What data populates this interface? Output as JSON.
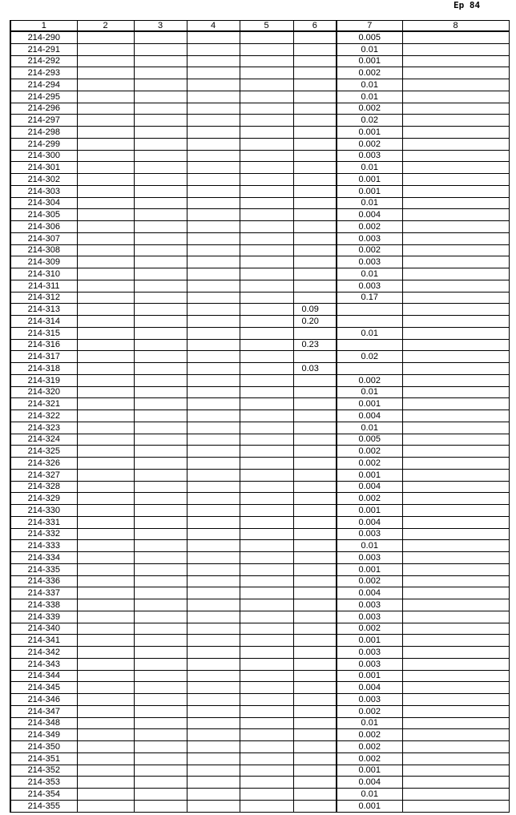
{
  "page_label": "Ep 84",
  "headers": [
    "1",
    "2",
    "3",
    "4",
    "5",
    "6",
    "7",
    "8"
  ],
  "rows": [
    [
      "214-290",
      "",
      "",
      "",
      "",
      "",
      "0.005",
      ""
    ],
    [
      "214-291",
      "",
      "",
      "",
      "",
      "",
      "0.01",
      ""
    ],
    [
      "214-292",
      "",
      "",
      "",
      "",
      "",
      "0.001",
      ""
    ],
    [
      "214-293",
      "",
      "",
      "",
      "",
      "",
      "0.002",
      ""
    ],
    [
      "214-294",
      "",
      "",
      "",
      "",
      "",
      "0.01",
      ""
    ],
    [
      "214-295",
      "",
      "",
      "",
      "",
      "",
      "0.01",
      ""
    ],
    [
      "214-296",
      "",
      "",
      "",
      "",
      "",
      "0.002",
      ""
    ],
    [
      "214-297",
      "",
      "",
      "",
      "",
      "",
      "0.02",
      ""
    ],
    [
      "214-298",
      "",
      "",
      "",
      "",
      "",
      "0.001",
      ""
    ],
    [
      "214-299",
      "",
      "",
      "",
      "",
      "",
      "0.002",
      ""
    ],
    [
      "214-300",
      "",
      "",
      "",
      "",
      "",
      "0.003",
      ""
    ],
    [
      "214-301",
      "",
      "",
      "",
      "",
      "",
      "0.01",
      ""
    ],
    [
      "214-302",
      "",
      "",
      "",
      "",
      "",
      "0.001",
      ""
    ],
    [
      "214-303",
      "",
      "",
      "",
      "",
      "",
      "0.001",
      ""
    ],
    [
      "214-304",
      "",
      "",
      "",
      "",
      "",
      "0.01",
      ""
    ],
    [
      "214-305",
      "",
      "",
      "",
      "",
      "",
      "0.004",
      ""
    ],
    [
      "214-306",
      "",
      "",
      "",
      "",
      "",
      "0.002",
      ""
    ],
    [
      "214-307",
      "",
      "",
      "",
      "",
      "",
      "0.003",
      ""
    ],
    [
      "214-308",
      "",
      "",
      "",
      "",
      "",
      "0.002",
      ""
    ],
    [
      "214-309",
      "",
      "",
      "",
      "",
      "",
      "0.003",
      ""
    ],
    [
      "214-310",
      "",
      "",
      "",
      "",
      "",
      "0.01",
      ""
    ],
    [
      "214-311",
      "",
      "",
      "",
      "",
      "",
      "0.003",
      ""
    ],
    [
      "214-312",
      "",
      "",
      "",
      "",
      "",
      "0.17",
      ""
    ],
    [
      "214-313",
      "",
      "",
      "",
      "",
      "0.09",
      "",
      ""
    ],
    [
      "214-314",
      "",
      "",
      "",
      "",
      "0.20",
      "",
      ""
    ],
    [
      "214-315",
      "",
      "",
      "",
      "",
      "",
      "0.01",
      ""
    ],
    [
      "214-316",
      "",
      "",
      "",
      "",
      "0.23",
      "",
      ""
    ],
    [
      "214-317",
      "",
      "",
      "",
      "",
      "",
      "0.02",
      ""
    ],
    [
      "214-318",
      "",
      "",
      "",
      "",
      "0.03",
      "",
      ""
    ],
    [
      "214-319",
      "",
      "",
      "",
      "",
      "",
      "0.002",
      ""
    ],
    [
      "214-320",
      "",
      "",
      "",
      "",
      "",
      "0.01",
      ""
    ],
    [
      "214-321",
      "",
      "",
      "",
      "",
      "",
      "0.001",
      ""
    ],
    [
      "214-322",
      "",
      "",
      "",
      "",
      "",
      "0.004",
      ""
    ],
    [
      "214-323",
      "",
      "",
      "",
      "",
      "",
      "0.01",
      ""
    ],
    [
      "214-324",
      "",
      "",
      "",
      "",
      "",
      "0.005",
      ""
    ],
    [
      "214-325",
      "",
      "",
      "",
      "",
      "",
      "0.002",
      ""
    ],
    [
      "214-326",
      "",
      "",
      "",
      "",
      "",
      "0.002",
      ""
    ],
    [
      "214-327",
      "",
      "",
      "",
      "",
      "",
      "0.001",
      ""
    ],
    [
      "214-328",
      "",
      "",
      "",
      "",
      "",
      "0.004",
      ""
    ],
    [
      "214-329",
      "",
      "",
      "",
      "",
      "",
      "0.002",
      ""
    ],
    [
      "214-330",
      "",
      "",
      "",
      "",
      "",
      "0.001",
      ""
    ],
    [
      "214-331",
      "",
      "",
      "",
      "",
      "",
      "0.004",
      ""
    ],
    [
      "214-332",
      "",
      "",
      "",
      "",
      "",
      "0.003",
      ""
    ],
    [
      "214-333",
      "",
      "",
      "",
      "",
      "",
      "0.01",
      ""
    ],
    [
      "214-334",
      "",
      "",
      "",
      "",
      "",
      "0.003",
      ""
    ],
    [
      "214-335",
      "",
      "",
      "",
      "",
      "",
      "0.001",
      ""
    ],
    [
      "214-336",
      "",
      "",
      "",
      "",
      "",
      "0.002",
      ""
    ],
    [
      "214-337",
      "",
      "",
      "",
      "",
      "",
      "0.004",
      ""
    ],
    [
      "214-338",
      "",
      "",
      "",
      "",
      "",
      "0.003",
      ""
    ],
    [
      "214-339",
      "",
      "",
      "",
      "",
      "",
      "0.003",
      ""
    ],
    [
      "214-340",
      "",
      "",
      "",
      "",
      "",
      "0.002",
      ""
    ],
    [
      "214-341",
      "",
      "",
      "",
      "",
      "",
      "0.001",
      ""
    ],
    [
      "214-342",
      "",
      "",
      "",
      "",
      "",
      "0.003",
      ""
    ],
    [
      "214-343",
      "",
      "",
      "",
      "",
      "",
      "0.003",
      ""
    ],
    [
      "214-344",
      "",
      "",
      "",
      "",
      "",
      "0.001",
      ""
    ],
    [
      "214-345",
      "",
      "",
      "",
      "",
      "",
      "0.004",
      ""
    ],
    [
      "214-346",
      "",
      "",
      "",
      "",
      "",
      "0.003",
      ""
    ],
    [
      "214-347",
      "",
      "",
      "",
      "",
      "",
      "0.002",
      ""
    ],
    [
      "214-348",
      "",
      "",
      "",
      "",
      "",
      "0.01",
      ""
    ],
    [
      "214-349",
      "",
      "",
      "",
      "",
      "",
      "0.002",
      ""
    ],
    [
      "214-350",
      "",
      "",
      "",
      "",
      "",
      "0.002",
      ""
    ],
    [
      "214-351",
      "",
      "",
      "",
      "",
      "",
      "0.002",
      ""
    ],
    [
      "214-352",
      "",
      "",
      "",
      "",
      "",
      "0.001",
      ""
    ],
    [
      "214-353",
      "",
      "",
      "",
      "",
      "",
      "0.004",
      ""
    ],
    [
      "214-354",
      "",
      "",
      "",
      "",
      "",
      "0.01",
      ""
    ],
    [
      "214-355",
      "",
      "",
      "",
      "",
      "",
      "0.001",
      ""
    ]
  ]
}
